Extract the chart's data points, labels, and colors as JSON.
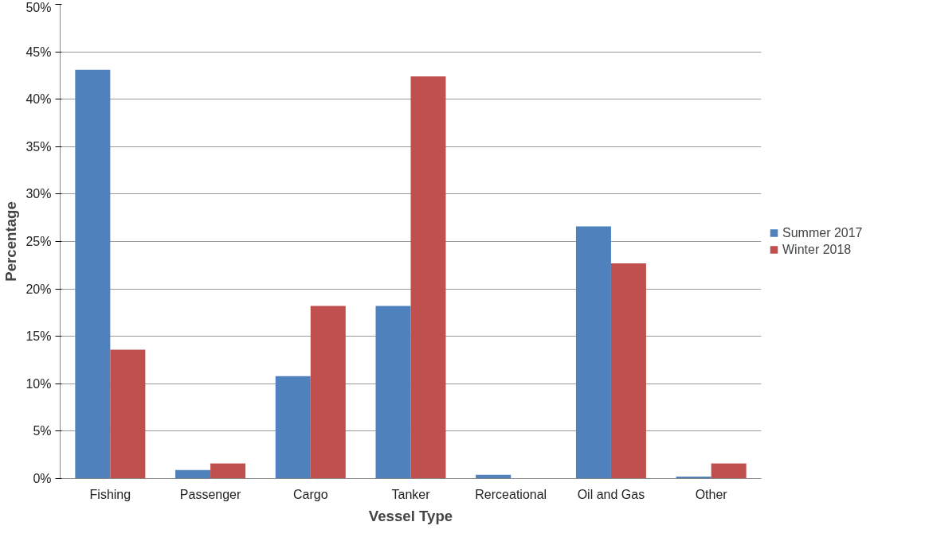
{
  "chart_data": {
    "type": "bar",
    "xlabel": "Vessel Type",
    "ylabel": "Percentage",
    "categories": [
      "Fishing",
      "Passenger",
      "Cargo",
      "Tanker",
      "Rerceational",
      "Oil and Gas",
      "Other"
    ],
    "series": [
      {
        "name": "Summer 2017",
        "color": "#4f81bd",
        "values": [
          43.1,
          0.9,
          10.8,
          18.2,
          0.4,
          26.6,
          0.2
        ]
      },
      {
        "name": "Winter 2018",
        "color": "#c0504d",
        "values": [
          13.6,
          1.6,
          18.2,
          42.4,
          0,
          22.7,
          1.6
        ]
      }
    ],
    "ylim": [
      0,
      50
    ],
    "yticks": [
      {
        "value": 0,
        "label": "0%"
      },
      {
        "value": 5,
        "label": "5%"
      },
      {
        "value": 10,
        "label": "10%"
      },
      {
        "value": 15,
        "label": "15%"
      },
      {
        "value": 20,
        "label": "20%"
      },
      {
        "value": 25,
        "label": "25%"
      },
      {
        "value": 30,
        "label": "30%"
      },
      {
        "value": 35,
        "label": "35%"
      },
      {
        "value": 40,
        "label": "40%"
      },
      {
        "value": 45,
        "label": "45%"
      },
      {
        "value": 50,
        "label": "50%"
      }
    ],
    "grid": "y",
    "legend": "right"
  }
}
